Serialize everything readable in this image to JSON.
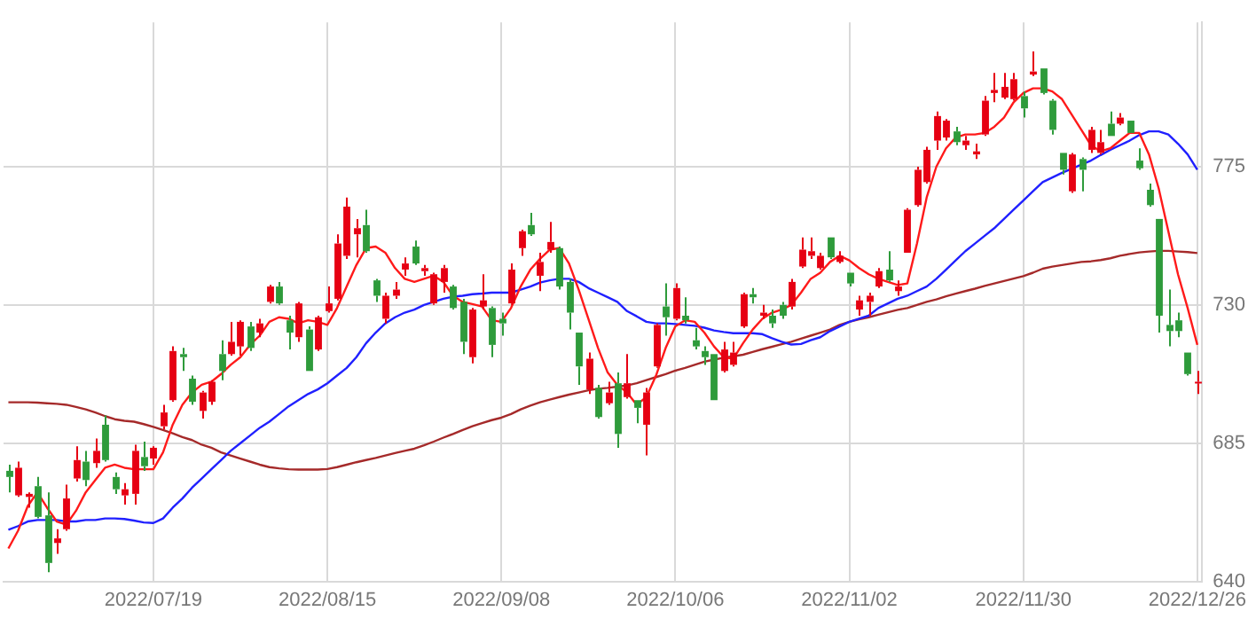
{
  "chart_data": {
    "type": "candlestick",
    "categories": [
      null,
      null,
      null,
      null,
      null,
      null,
      null,
      null,
      null,
      null,
      null,
      null,
      null,
      null,
      null,
      "2022/07/19",
      null,
      null,
      null,
      null,
      null,
      null,
      null,
      null,
      null,
      null,
      null,
      null,
      null,
      null,
      null,
      null,
      null,
      "2022/08/15",
      null,
      null,
      null,
      null,
      null,
      null,
      null,
      null,
      null,
      null,
      null,
      null,
      null,
      null,
      null,
      null,
      null,
      "2022/09/08",
      null,
      null,
      null,
      null,
      null,
      null,
      null,
      null,
      null,
      null,
      null,
      null,
      null,
      null,
      null,
      null,
      null,
      "2022/10/06",
      null,
      null,
      null,
      null,
      null,
      null,
      null,
      null,
      null,
      null,
      null,
      null,
      null,
      null,
      null,
      null,
      null,
      "2022/11/02",
      null,
      null,
      null,
      null,
      null,
      null,
      null,
      null,
      null,
      null,
      null,
      null,
      null,
      null,
      null,
      null,
      null,
      "2022/11/30",
      null,
      null,
      null,
      null,
      null,
      null,
      null,
      null,
      null,
      null,
      null,
      null,
      null,
      null,
      null,
      null,
      null,
      "2022/12/26"
    ],
    "ohlc": [
      [
        676,
        678,
        669,
        674
      ],
      [
        668,
        679,
        667.5,
        677
      ],
      [
        667.5,
        669,
        664,
        668.5
      ],
      [
        671,
        674,
        660.5,
        661
      ],
      [
        661.5,
        669,
        643,
        646
      ],
      [
        652.5,
        657,
        649,
        654
      ],
      [
        657,
        671.5,
        656.5,
        667
      ],
      [
        673.5,
        684,
        672.5,
        679.5
      ],
      [
        679,
        682.5,
        671,
        673
      ],
      [
        678.5,
        686.5,
        677,
        682.5
      ],
      [
        691,
        694,
        679,
        679.5
      ],
      [
        674,
        675.5,
        668.5,
        670
      ],
      [
        668,
        672,
        665,
        670
      ],
      [
        668.5,
        684.5,
        665,
        682.5
      ],
      [
        680.5,
        685.5,
        676,
        677.5
      ],
      [
        680,
        684,
        678,
        683.5
      ],
      [
        690.5,
        697.5,
        689.5,
        695
      ],
      [
        699,
        716.5,
        698.5,
        715
      ],
      [
        714,
        716,
        708.5,
        713
      ],
      [
        706,
        707,
        697.5,
        698.5
      ],
      [
        695.5,
        702,
        693,
        701.5
      ],
      [
        698.5,
        705.5,
        697.5,
        705
      ],
      [
        714,
        718.5,
        705.5,
        708.5
      ],
      [
        714,
        724.5,
        713.5,
        718
      ],
      [
        716.5,
        725,
        713.5,
        724.5
      ],
      [
        723,
        724.5,
        715,
        716
      ],
      [
        721,
        725.5,
        719.5,
        724
      ],
      [
        731,
        736.5,
        730.5,
        736
      ],
      [
        736,
        737.5,
        730,
        730.5
      ],
      [
        725,
        726.5,
        715.5,
        721
      ],
      [
        719.5,
        731,
        718,
        730.5
      ],
      [
        722,
        723,
        708.5,
        708.5
      ],
      [
        715.5,
        726.5,
        715,
        726
      ],
      [
        728,
        736,
        727.5,
        730.5
      ],
      [
        732,
        753,
        731.5,
        750
      ],
      [
        746,
        765,
        745,
        762
      ],
      [
        753,
        758,
        745.5,
        755
      ],
      [
        756,
        761,
        747,
        747.5
      ],
      [
        738,
        738.5,
        731,
        733
      ],
      [
        725.5,
        734,
        724,
        733
      ],
      [
        733,
        737.5,
        732,
        735
      ],
      [
        741.5,
        745.5,
        739.5,
        743.5
      ],
      [
        749,
        751,
        743,
        743.5
      ],
      [
        741,
        743,
        739.5,
        742
      ],
      [
        730.5,
        740.5,
        730,
        740
      ],
      [
        737.5,
        743,
        734,
        742
      ],
      [
        736,
        736.5,
        728.5,
        729
      ],
      [
        731,
        732,
        714,
        718
      ],
      [
        713,
        729,
        711,
        728.5
      ],
      [
        729.5,
        740,
        728.5,
        731.5
      ],
      [
        729,
        729.5,
        713,
        717
      ],
      [
        725.5,
        727.5,
        720,
        724
      ],
      [
        730.5,
        743.5,
        730,
        741.5
      ],
      [
        748.5,
        754.5,
        746,
        754
      ],
      [
        756,
        760,
        752.5,
        753
      ],
      [
        739.5,
        747,
        734.5,
        744
      ],
      [
        748,
        757,
        747,
        750.5
      ],
      [
        748.5,
        749,
        735,
        736
      ],
      [
        737.5,
        738.5,
        722,
        727.5
      ],
      [
        721,
        721,
        704,
        710
      ],
      [
        702.5,
        714.5,
        701,
        712.5
      ],
      [
        703,
        704,
        693,
        693.5
      ],
      [
        698,
        705,
        697.5,
        701.5
      ],
      [
        704.5,
        708,
        683.5,
        688
      ],
      [
        700,
        714,
        699.5,
        704.5
      ],
      [
        699,
        699,
        691.5,
        696.5
      ],
      [
        691,
        703,
        681,
        701.5
      ],
      [
        710,
        724,
        709.5,
        723.5
      ],
      [
        729.5,
        737,
        720,
        726
      ],
      [
        725.5,
        737,
        725,
        735.5
      ],
      [
        726.5,
        732.5,
        724,
        725
      ],
      [
        718.5,
        722.5,
        715.5,
        716.5
      ],
      [
        715,
        716.5,
        710.5,
        713
      ],
      [
        714,
        714,
        699,
        699
      ],
      [
        708.5,
        718,
        708,
        715.5
      ],
      [
        710.5,
        718,
        710,
        714.5
      ],
      [
        723,
        734,
        722.5,
        733.5
      ],
      [
        733.5,
        735.5,
        730.5,
        732.5
      ],
      [
        726.5,
        730,
        725.5,
        727.5
      ],
      [
        726.5,
        728.5,
        722.5,
        724
      ],
      [
        730,
        731,
        725.5,
        726.5
      ],
      [
        729.5,
        738.5,
        728.5,
        737.5
      ],
      [
        742.5,
        752,
        742,
        748
      ],
      [
        746,
        752,
        745,
        747.5
      ],
      [
        742,
        747,
        741.5,
        746
      ],
      [
        752,
        752,
        745,
        745.5
      ],
      [
        744,
        747.5,
        743.5,
        746
      ],
      [
        740.5,
        740.5,
        736,
        737
      ],
      [
        728.5,
        733,
        726.5,
        731.5
      ],
      [
        731,
        734,
        726.5,
        733
      ],
      [
        736,
        742,
        735.5,
        741
      ],
      [
        741.5,
        747.5,
        737.5,
        738
      ],
      [
        734.5,
        738,
        733,
        736
      ],
      [
        747,
        761.5,
        747,
        761
      ],
      [
        762.5,
        775,
        762,
        774
      ],
      [
        770,
        781.5,
        769.5,
        780.5
      ],
      [
        783.5,
        793,
        780.5,
        791.5
      ],
      [
        784.5,
        790.5,
        783.5,
        790
      ],
      [
        786.5,
        788,
        782,
        783
      ],
      [
        782,
        785,
        780.5,
        783.5
      ],
      [
        779,
        782.5,
        777.5,
        780
      ],
      [
        785.5,
        798,
        785,
        796.5
      ],
      [
        799,
        805.5,
        796,
        800
      ],
      [
        797.5,
        805.5,
        797,
        801
      ],
      [
        797,
        805.5,
        796.5,
        803.5
      ],
      [
        798,
        799.5,
        791,
        794
      ],
      [
        805,
        812.5,
        804.5,
        806
      ],
      [
        807,
        807,
        798.5,
        799
      ],
      [
        796.5,
        797,
        785.5,
        787
      ],
      [
        779.5,
        779.5,
        772.5,
        774
      ],
      [
        767,
        779.5,
        766.5,
        779
      ],
      [
        777.5,
        778,
        767,
        774
      ],
      [
        780.5,
        788,
        779.5,
        787
      ],
      [
        779.5,
        787,
        779,
        783
      ],
      [
        789,
        793,
        785,
        785
      ],
      [
        789,
        792.5,
        788.5,
        791
      ],
      [
        790,
        790,
        786,
        786
      ],
      [
        777,
        781,
        774,
        774.5
      ],
      [
        767.5,
        769.5,
        762,
        762.5
      ],
      [
        758,
        758,
        721,
        726.5
      ],
      [
        723.5,
        735,
        716.5,
        721.5
      ],
      [
        725,
        727.5,
        719.5,
        721.5
      ],
      [
        714.5,
        714.5,
        707,
        707.5
      ],
      [
        704.5,
        708.5,
        701,
        705
      ]
    ],
    "colors": [
      "#2e9b3b",
      "#e60012",
      "#e60012",
      "#2e9b3b",
      "#2e9b3b",
      "#e60012",
      "#e60012",
      "#e60012",
      "#2e9b3b",
      "#e60012",
      "#2e9b3b",
      "#2e9b3b",
      "#e60012",
      "#e60012",
      "#2e9b3b",
      "#e60012",
      "#e60012",
      "#e60012",
      "#2e9b3b",
      "#2e9b3b",
      "#e60012",
      "#e60012",
      "#2e9b3b",
      "#e60012",
      "#e60012",
      "#2e9b3b",
      "#e60012",
      "#e60012",
      "#2e9b3b",
      "#2e9b3b",
      "#e60012",
      "#2e9b3b",
      "#e60012",
      "#e60012",
      "#e60012",
      "#e60012",
      "#e60012",
      "#2e9b3b",
      "#2e9b3b",
      "#e60012",
      "#e60012",
      "#e60012",
      "#2e9b3b",
      "#e60012",
      "#e60012",
      "#e60012",
      "#2e9b3b",
      "#2e9b3b",
      "#e60012",
      "#e60012",
      "#2e9b3b",
      "#2e9b3b",
      "#e60012",
      "#e60012",
      "#2e9b3b",
      "#e60012",
      "#e60012",
      "#2e9b3b",
      "#2e9b3b",
      "#2e9b3b",
      "#e60012",
      "#2e9b3b",
      "#e60012",
      "#2e9b3b",
      "#e60012",
      "#2e9b3b",
      "#e60012",
      "#e60012",
      "#2e9b3b",
      "#e60012",
      "#2e9b3b",
      "#2e9b3b",
      "#2e9b3b",
      "#2e9b3b",
      "#e60012",
      "#e60012",
      "#e60012",
      "#2e9b3b",
      "#e60012",
      "#2e9b3b",
      "#2e9b3b",
      "#e60012",
      "#e60012",
      "#e60012",
      "#e60012",
      "#2e9b3b",
      "#e60012",
      "#2e9b3b",
      "#e60012",
      "#e60012",
      "#e60012",
      "#2e9b3b",
      "#e60012",
      "#e60012",
      "#e60012",
      "#e60012",
      "#e60012",
      "#e60012",
      "#2e9b3b",
      "#e60012",
      "#e60012",
      "#e60012",
      "#e60012",
      "#e60012",
      "#e60012",
      "#2e9b3b",
      "#e60012",
      "#2e9b3b",
      "#2e9b3b",
      "#2e9b3b",
      "#e60012",
      "#2e9b3b",
      "#e60012",
      "#e60012",
      "#2e9b3b",
      "#e60012",
      "#2e9b3b",
      "#2e9b3b",
      "#2e9b3b",
      "#2e9b3b",
      "#2e9b3b",
      "#2e9b3b",
      "#2e9b3b",
      "#e60012"
    ],
    "series": [
      {
        "type": "line",
        "color": "#ff1a1a",
        "values": [
          650.7,
          656.5,
          664.5,
          669,
          664,
          659.5,
          658.5,
          663,
          669,
          673,
          677,
          678,
          677,
          676.5,
          676.5,
          676.5,
          682,
          691,
          697.5,
          701.5,
          704,
          705,
          707.5,
          710.5,
          713,
          717,
          720,
          724.5,
          726,
          725.5,
          724,
          725,
          724.5,
          723.5,
          729,
          736,
          743,
          748.5,
          749,
          747,
          742,
          738.5,
          737.5,
          738.5,
          739.5,
          737.5,
          733,
          731,
          730.3,
          729.5,
          725,
          724.5,
          729,
          736,
          741.5,
          745,
          748,
          748.5,
          743.5,
          735,
          725.5,
          716,
          708,
          704,
          701.5,
          697.5,
          700,
          707,
          716,
          723,
          725,
          724.5,
          721,
          716.5,
          713,
          712.5,
          717.5,
          722,
          725.5,
          727.5,
          728.5,
          730,
          734,
          738.5,
          740.5,
          744,
          746,
          744.5,
          742,
          740,
          738.5,
          737.5,
          736.5,
          737,
          750,
          765,
          775,
          781,
          784.5,
          785.5,
          785.5,
          786,
          788,
          791,
          796,
          799,
          800.5,
          800.5,
          799.5,
          797,
          792,
          787,
          782,
          780,
          781,
          783.5,
          786,
          786,
          779,
          768,
          754,
          740,
          729,
          717
        ]
      },
      {
        "type": "line",
        "color": "#2020ff",
        "values": [
          656.8,
          658,
          659.5,
          660,
          660,
          660,
          659.5,
          659.5,
          660,
          660,
          660.5,
          660.5,
          660.3,
          659.8,
          659.2,
          659,
          660.5,
          664,
          667,
          670.5,
          673.5,
          676.5,
          679.5,
          682.5,
          685,
          687.5,
          690,
          692,
          694.5,
          697,
          699,
          701,
          702.5,
          704.5,
          707,
          709.5,
          713,
          717.5,
          721,
          724,
          726,
          727.5,
          728.5,
          730,
          731,
          732,
          732.7,
          733,
          733.5,
          733.7,
          734,
          734,
          734,
          735,
          736,
          737.3,
          738,
          738.5,
          738.5,
          737.5,
          735.5,
          734,
          732.5,
          731,
          728,
          726.3,
          724.5,
          724,
          724,
          723.8,
          723.5,
          723.2,
          722.6,
          721.7,
          721.2,
          720.8,
          720.8,
          720.8,
          720.5,
          719.2,
          718,
          717.1,
          717.3,
          718.5,
          719.5,
          721.5,
          723,
          724.5,
          725.5,
          726.5,
          729,
          730.5,
          732,
          733,
          734.5,
          736,
          738.5,
          741.5,
          744.5,
          747.5,
          750,
          752.5,
          755,
          758,
          761,
          764,
          767,
          770,
          771.5,
          773,
          774.3,
          775.7,
          777,
          778.8,
          780.5,
          782,
          783.5,
          785.3,
          786.5,
          786.5,
          785.5,
          782.5,
          779,
          774
        ]
      },
      {
        "type": "line",
        "color": "#a52a2a",
        "values": [
          698.3,
          698.3,
          698.3,
          698.2,
          698,
          697.8,
          697.5,
          696.8,
          696,
          695,
          693.8,
          692.8,
          692.3,
          692,
          691.2,
          690.3,
          689.3,
          688.2,
          687,
          686,
          684.5,
          683.5,
          682,
          681,
          680,
          679,
          678,
          677.2,
          676.8,
          676.5,
          676.4,
          676.4,
          676.4,
          676.6,
          677.2,
          678,
          678.8,
          679.5,
          680.2,
          681,
          681.8,
          682.5,
          683.2,
          684.3,
          685.5,
          686.8,
          688,
          689.3,
          690.5,
          691.5,
          692.5,
          693.3,
          694.5,
          696,
          697.2,
          698.3,
          699.2,
          700,
          700.8,
          701.5,
          702.2,
          702.7,
          703,
          703.4,
          703.8,
          704.5,
          705.5,
          706.5,
          707.5,
          708.6,
          709.5,
          710.5,
          711.5,
          712.2,
          712.8,
          713.3,
          713.8,
          714.7,
          715.6,
          716.4,
          717.2,
          718,
          719,
          720,
          721,
          722,
          723.5,
          724.5,
          725.3,
          726,
          726.8,
          727.6,
          728.4,
          729,
          730,
          731,
          731.8,
          732.8,
          733.7,
          734.5,
          735.3,
          736.2,
          737,
          737.8,
          738.6,
          739.4,
          740.5,
          741.8,
          742.5,
          743,
          743.5,
          744,
          744.2,
          744.6,
          745.2,
          746,
          746.6,
          747.1,
          747.4,
          747.6,
          747.6,
          747.4,
          747.2,
          746.9
        ]
      }
    ],
    "ylim": [
      640,
      822
    ],
    "yticks": [
      640,
      685,
      730,
      775
    ],
    "grid": true,
    "marker": "none",
    "legend": false
  }
}
